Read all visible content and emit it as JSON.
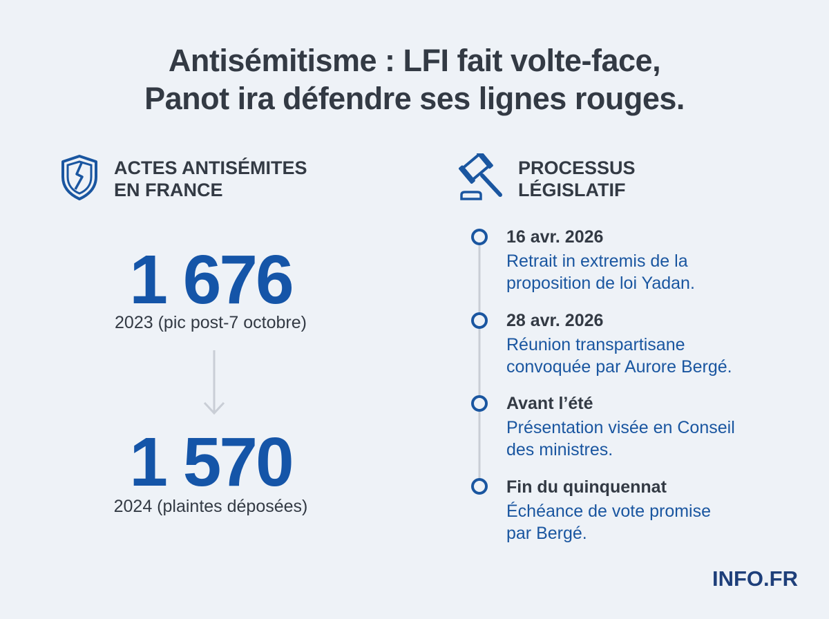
{
  "header": {
    "title_lines": [
      "Antisémitisme : LFI fait volte-face,",
      "Panot ira défendre ses lignes rouges."
    ]
  },
  "left": {
    "heading_lines": [
      "ACTES ANTISÉMITES",
      "EN FRANCE"
    ],
    "stats": [
      {
        "value": "1 676",
        "caption": "2023 (pic post-7 octobre)"
      },
      {
        "value": "1 570",
        "caption": "2024 (plaintes déposées)"
      }
    ]
  },
  "right": {
    "heading_lines": [
      "PROCESSUS",
      "LÉGISLATIF"
    ],
    "timeline": [
      {
        "date": "16 avr. 2026",
        "lines": [
          "Retrait in extremis de la",
          "proposition de loi Yadan."
        ]
      },
      {
        "date": "28 avr. 2026",
        "lines": [
          "Réunion transpartisane",
          "convoquée par Aurore Bergé."
        ]
      },
      {
        "date": "Avant l’été",
        "lines": [
          "Présentation visée en Conseil",
          "des ministres."
        ]
      },
      {
        "date": "Fin du quinquennat",
        "lines": [
          "Échéance de vote promise",
          "par Bergé."
        ]
      }
    ]
  },
  "footer": {
    "brand": "INFO.FR"
  }
}
